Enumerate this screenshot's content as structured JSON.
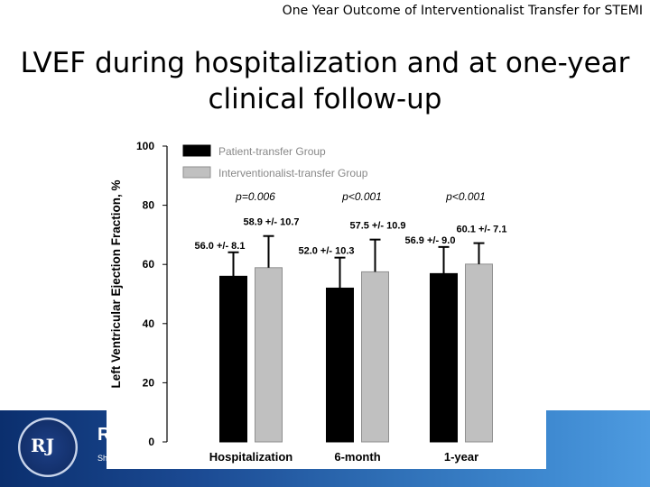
{
  "header": {
    "title": "One Year Outcome of Interventionalist Transfer for STEMI"
  },
  "slide": {
    "title": "LVEF during hospitalization and at one-year clinical follow-up"
  },
  "banner": {
    "logo_text": "RJ",
    "letter": "R",
    "small_text": "Sh"
  },
  "colors": {
    "patient": "#000000",
    "interventionalist": "#c0c0c0",
    "banner": "#1b4a93"
  },
  "chart_data": {
    "type": "bar",
    "ylabel": "Left Ventricular Ejection Fraction, %",
    "ylim": [
      0,
      100
    ],
    "yticks": [
      0,
      20,
      40,
      60,
      80,
      100
    ],
    "categories": [
      "Hospitalization",
      "6-month",
      "1-year"
    ],
    "legend_position": "top-left",
    "series": [
      {
        "name": "Patient-transfer Group",
        "values": [
          56.0,
          52.0,
          56.9
        ],
        "errors": [
          8.1,
          10.3,
          9.0
        ],
        "labels": [
          "56.0 +/- 8.1",
          "52.0 +/- 10.3",
          "56.9 +/- 9.0"
        ]
      },
      {
        "name": "Interventionalist-transfer Group",
        "values": [
          58.9,
          57.5,
          60.1
        ],
        "errors": [
          10.7,
          10.9,
          7.1
        ],
        "labels": [
          "58.9 +/- 10.7",
          "57.5 +/- 10.9",
          "60.1 +/- 7.1"
        ]
      }
    ],
    "p_values": [
      "p=0.006",
      "p<0.001",
      "p<0.001"
    ]
  }
}
